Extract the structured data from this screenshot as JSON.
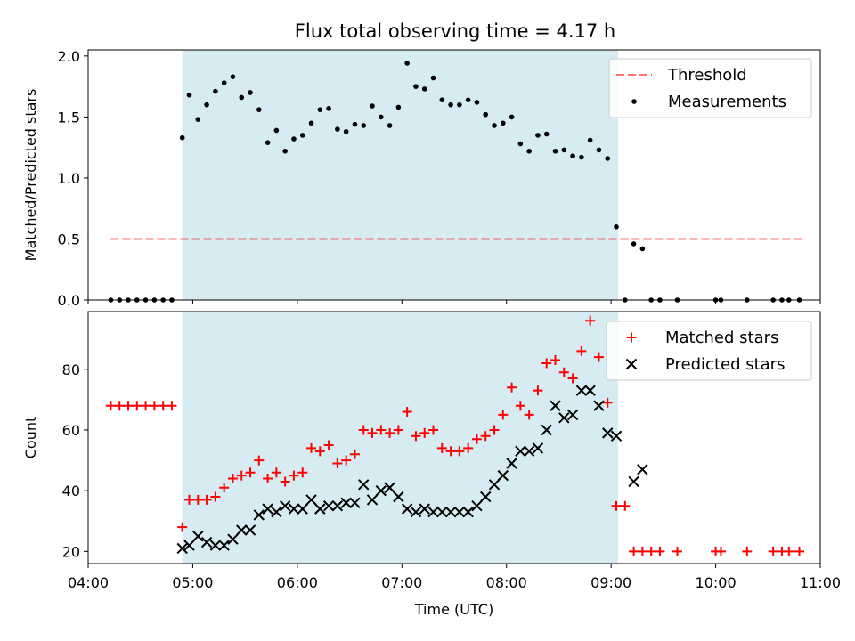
{
  "title": "Flux total observing time = 4.17 h",
  "colors": {
    "shade": "#add8e6",
    "threshold": "#ff0000",
    "measurements": "#000000",
    "matched": "#ff0000",
    "predicted": "#000000"
  },
  "chart_data": [
    {
      "type": "scatter",
      "panel": "top",
      "ylabel": "Matched/Predicted stars",
      "xlim": [
        "04:00",
        "11:00"
      ],
      "ylim": [
        0,
        2.05
      ],
      "yticks": [
        "0.0",
        "0.5",
        "1.0",
        "1.5",
        "2.0"
      ],
      "shaded_region": {
        "start": "04:54",
        "end": "09:04"
      },
      "legend": {
        "placement": "top-right",
        "entries": [
          "Threshold",
          "Measurements"
        ]
      },
      "threshold": {
        "name": "Threshold",
        "value": 0.5,
        "x_start": "04:13",
        "x_end": "10:50",
        "style": "dashed"
      },
      "series": [
        {
          "name": "Measurements",
          "points": [
            [
              "04:13",
              0
            ],
            [
              "04:18",
              0
            ],
            [
              "04:23",
              0
            ],
            [
              "04:28",
              0
            ],
            [
              "04:33",
              0
            ],
            [
              "04:38",
              0
            ],
            [
              "04:43",
              0
            ],
            [
              "04:48",
              0
            ],
            [
              "04:54",
              1.33
            ],
            [
              "04:58",
              1.68
            ],
            [
              "05:03",
              1.48
            ],
            [
              "05:08",
              1.6
            ],
            [
              "05:13",
              1.71
            ],
            [
              "05:18",
              1.78
            ],
            [
              "05:23",
              1.83
            ],
            [
              "05:28",
              1.66
            ],
            [
              "05:33",
              1.7
            ],
            [
              "05:38",
              1.56
            ],
            [
              "05:43",
              1.29
            ],
            [
              "05:48",
              1.39
            ],
            [
              "05:53",
              1.22
            ],
            [
              "05:58",
              1.32
            ],
            [
              "06:03",
              1.35
            ],
            [
              "06:08",
              1.45
            ],
            [
              "06:13",
              1.56
            ],
            [
              "06:18",
              1.57
            ],
            [
              "06:23",
              1.4
            ],
            [
              "06:28",
              1.38
            ],
            [
              "06:33",
              1.44
            ],
            [
              "06:38",
              1.43
            ],
            [
              "06:43",
              1.59
            ],
            [
              "06:48",
              1.5
            ],
            [
              "06:53",
              1.43
            ],
            [
              "06:58",
              1.58
            ],
            [
              "07:03",
              1.94
            ],
            [
              "07:08",
              1.75
            ],
            [
              "07:13",
              1.73
            ],
            [
              "07:18",
              1.82
            ],
            [
              "07:23",
              1.64
            ],
            [
              "07:28",
              1.6
            ],
            [
              "07:33",
              1.6
            ],
            [
              "07:38",
              1.64
            ],
            [
              "07:43",
              1.62
            ],
            [
              "07:48",
              1.52
            ],
            [
              "07:53",
              1.43
            ],
            [
              "07:58",
              1.45
            ],
            [
              "08:03",
              1.5
            ],
            [
              "08:08",
              1.28
            ],
            [
              "08:13",
              1.22
            ],
            [
              "08:18",
              1.35
            ],
            [
              "08:23",
              1.36
            ],
            [
              "08:28",
              1.22
            ],
            [
              "08:33",
              1.23
            ],
            [
              "08:38",
              1.18
            ],
            [
              "08:43",
              1.17
            ],
            [
              "08:48",
              1.31
            ],
            [
              "08:53",
              1.23
            ],
            [
              "08:58",
              1.16
            ],
            [
              "09:03",
              0.6
            ],
            [
              "09:08",
              0
            ],
            [
              "09:13",
              0.46
            ],
            [
              "09:18",
              0.42
            ],
            [
              "09:23",
              0
            ],
            [
              "09:28",
              0
            ],
            [
              "09:38",
              0
            ],
            [
              "10:00",
              0
            ],
            [
              "10:03",
              0
            ],
            [
              "10:18",
              0
            ],
            [
              "10:33",
              0
            ],
            [
              "10:38",
              0
            ],
            [
              "10:42",
              0
            ],
            [
              "10:48",
              0
            ]
          ]
        }
      ]
    },
    {
      "type": "scatter",
      "panel": "bottom",
      "xlabel": "Time (UTC)",
      "ylabel": "Count",
      "xlim": [
        "04:00",
        "11:00"
      ],
      "xticks": [
        "04:00",
        "05:00",
        "06:00",
        "07:00",
        "08:00",
        "09:00",
        "10:00",
        "11:00"
      ],
      "ylim": [
        16,
        99
      ],
      "yticks": [
        "20",
        "40",
        "60",
        "80"
      ],
      "shaded_region": {
        "start": "04:54",
        "end": "09:04"
      },
      "legend": {
        "placement": "top-right",
        "entries": [
          "Matched stars",
          "Predicted stars"
        ]
      },
      "series": [
        {
          "name": "Matched stars",
          "marker": "plus",
          "points": [
            [
              "04:13",
              68
            ],
            [
              "04:18",
              68
            ],
            [
              "04:23",
              68
            ],
            [
              "04:28",
              68
            ],
            [
              "04:33",
              68
            ],
            [
              "04:38",
              68
            ],
            [
              "04:43",
              68
            ],
            [
              "04:48",
              68
            ],
            [
              "04:54",
              28
            ],
            [
              "04:58",
              37
            ],
            [
              "05:03",
              37
            ],
            [
              "05:08",
              37
            ],
            [
              "05:13",
              38
            ],
            [
              "05:18",
              41
            ],
            [
              "05:23",
              44
            ],
            [
              "05:28",
              45
            ],
            [
              "05:33",
              46
            ],
            [
              "05:38",
              50
            ],
            [
              "05:43",
              44
            ],
            [
              "05:48",
              46
            ],
            [
              "05:53",
              43
            ],
            [
              "05:58",
              45
            ],
            [
              "06:03",
              46
            ],
            [
              "06:08",
              54
            ],
            [
              "06:13",
              53
            ],
            [
              "06:18",
              55
            ],
            [
              "06:23",
              49
            ],
            [
              "06:28",
              50
            ],
            [
              "06:33",
              52
            ],
            [
              "06:38",
              60
            ],
            [
              "06:43",
              59
            ],
            [
              "06:48",
              60
            ],
            [
              "06:53",
              59
            ],
            [
              "06:58",
              60
            ],
            [
              "07:03",
              66
            ],
            [
              "07:08",
              58
            ],
            [
              "07:13",
              59
            ],
            [
              "07:18",
              60
            ],
            [
              "07:23",
              54
            ],
            [
              "07:28",
              53
            ],
            [
              "07:33",
              53
            ],
            [
              "07:38",
              54
            ],
            [
              "07:43",
              57
            ],
            [
              "07:48",
              58
            ],
            [
              "07:53",
              60
            ],
            [
              "07:58",
              65
            ],
            [
              "08:03",
              74
            ],
            [
              "08:08",
              68
            ],
            [
              "08:13",
              65
            ],
            [
              "08:18",
              73
            ],
            [
              "08:23",
              82
            ],
            [
              "08:28",
              83
            ],
            [
              "08:33",
              79
            ],
            [
              "08:38",
              77
            ],
            [
              "08:43",
              86
            ],
            [
              "08:48",
              96
            ],
            [
              "08:53",
              84
            ],
            [
              "08:58",
              69
            ],
            [
              "09:03",
              35
            ],
            [
              "09:08",
              35
            ],
            [
              "09:13",
              20
            ],
            [
              "09:18",
              20
            ],
            [
              "09:23",
              20
            ],
            [
              "09:28",
              20
            ],
            [
              "09:38",
              20
            ],
            [
              "10:00",
              20
            ],
            [
              "10:03",
              20
            ],
            [
              "10:18",
              20
            ],
            [
              "10:33",
              20
            ],
            [
              "10:38",
              20
            ],
            [
              "10:42",
              20
            ],
            [
              "10:48",
              20
            ]
          ]
        },
        {
          "name": "Predicted stars",
          "marker": "x",
          "points": [
            [
              "04:54",
              21
            ],
            [
              "04:58",
              22
            ],
            [
              "05:03",
              25
            ],
            [
              "05:08",
              23
            ],
            [
              "05:13",
              22
            ],
            [
              "05:18",
              22
            ],
            [
              "05:23",
              24
            ],
            [
              "05:28",
              27
            ],
            [
              "05:33",
              27
            ],
            [
              "05:38",
              32
            ],
            [
              "05:43",
              34
            ],
            [
              "05:48",
              33
            ],
            [
              "05:53",
              35
            ],
            [
              "05:58",
              34
            ],
            [
              "06:03",
              34
            ],
            [
              "06:08",
              37
            ],
            [
              "06:13",
              34
            ],
            [
              "06:18",
              35
            ],
            [
              "06:23",
              35
            ],
            [
              "06:28",
              36
            ],
            [
              "06:33",
              36
            ],
            [
              "06:38",
              42
            ],
            [
              "06:43",
              37
            ],
            [
              "06:48",
              40
            ],
            [
              "06:53",
              41
            ],
            [
              "06:58",
              38
            ],
            [
              "07:03",
              34
            ],
            [
              "07:08",
              33
            ],
            [
              "07:13",
              34
            ],
            [
              "07:18",
              33
            ],
            [
              "07:23",
              33
            ],
            [
              "07:28",
              33
            ],
            [
              "07:33",
              33
            ],
            [
              "07:38",
              33
            ],
            [
              "07:43",
              35
            ],
            [
              "07:48",
              38
            ],
            [
              "07:53",
              42
            ],
            [
              "07:58",
              45
            ],
            [
              "08:03",
              49
            ],
            [
              "08:08",
              53
            ],
            [
              "08:13",
              53
            ],
            [
              "08:18",
              54
            ],
            [
              "08:23",
              60
            ],
            [
              "08:28",
              68
            ],
            [
              "08:33",
              64
            ],
            [
              "08:38",
              65
            ],
            [
              "08:43",
              73
            ],
            [
              "08:48",
              73
            ],
            [
              "08:53",
              68
            ],
            [
              "08:58",
              59
            ],
            [
              "09:03",
              58
            ],
            [
              "09:13",
              43
            ],
            [
              "09:18",
              47
            ]
          ]
        }
      ]
    }
  ]
}
